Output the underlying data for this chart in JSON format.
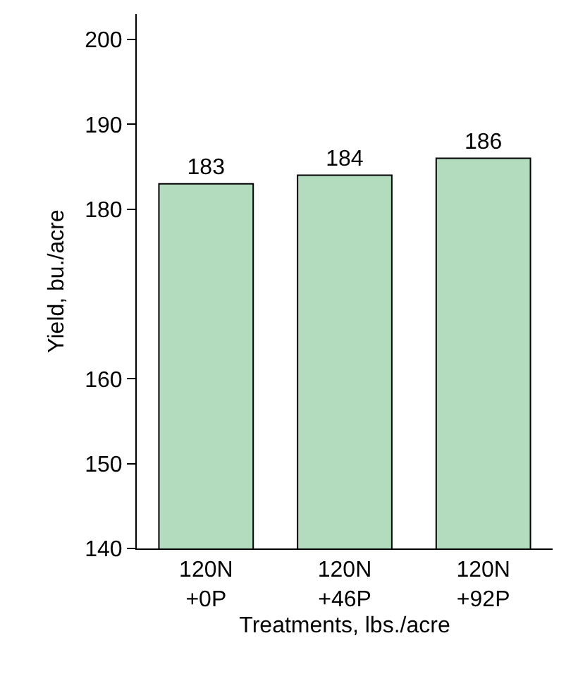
{
  "chart_data": {
    "type": "bar",
    "categories": [
      "120N\n+0P",
      "120N\n+46P",
      "120N\n+92P"
    ],
    "values": [
      183,
      184,
      186
    ],
    "color": "#b3dcbf",
    "data_labels": true,
    "xlabel": "Treatments, lbs./acre",
    "ylabel": "Yield, bu./acre",
    "ylim": [
      140,
      203
    ],
    "yticks": [
      140,
      150,
      160,
      180,
      190,
      200
    ],
    "grid": false
  }
}
